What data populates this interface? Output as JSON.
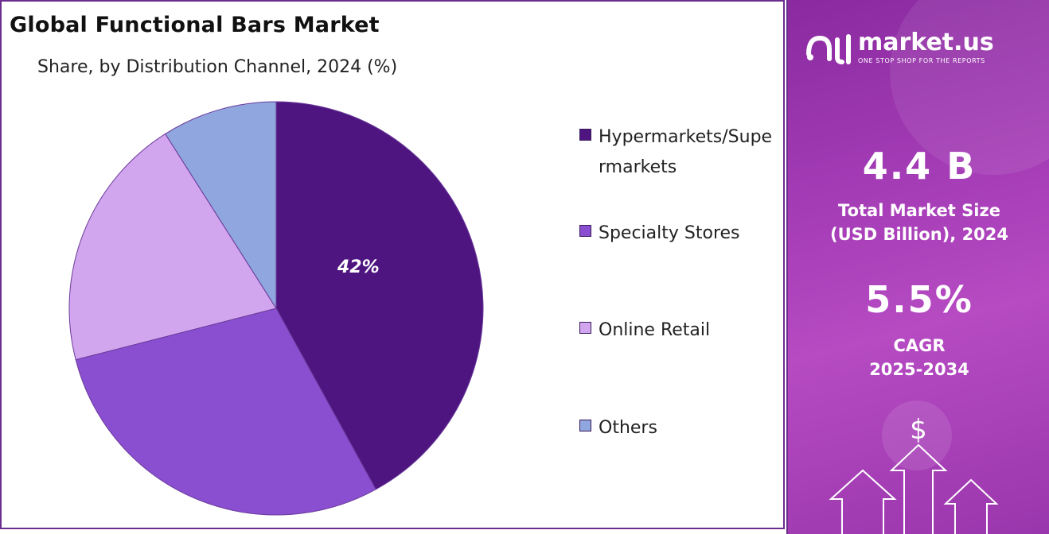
{
  "chart_data": {
    "type": "pie",
    "title": "Global Functional Bars Market",
    "subtitle": "Share, by Distribution Channel, 2024 (%)",
    "slices": [
      {
        "name": "Hypermarkets/Supermarkets",
        "value": 42,
        "label": "42%",
        "color": "#4e1580"
      },
      {
        "name": "Specialty Stores",
        "value": 29,
        "label": "",
        "color": "#8a4fd0"
      },
      {
        "name": "Online Retail",
        "value": 20,
        "label": "",
        "color": "#d2a6ee"
      },
      {
        "name": "Others",
        "value": 9,
        "label": "",
        "color": "#8fa6de"
      }
    ],
    "legend_position": "right"
  },
  "brand": {
    "name": "market.us",
    "tagline": "ONE STOP SHOP FOR THE REPORTS"
  },
  "stats": {
    "market_size_value": "4.4 B",
    "market_size_label_1": "Total Market Size",
    "market_size_label_2": "(USD Billion), 2024",
    "cagr_value": "5.5%",
    "cagr_label_1": "CAGR",
    "cagr_label_2": "2025-2034"
  },
  "decoration": {
    "currency_symbol": "$"
  },
  "colors": {
    "panel_border": "#6b2d8f",
    "side_panel": "#a43cb6"
  }
}
